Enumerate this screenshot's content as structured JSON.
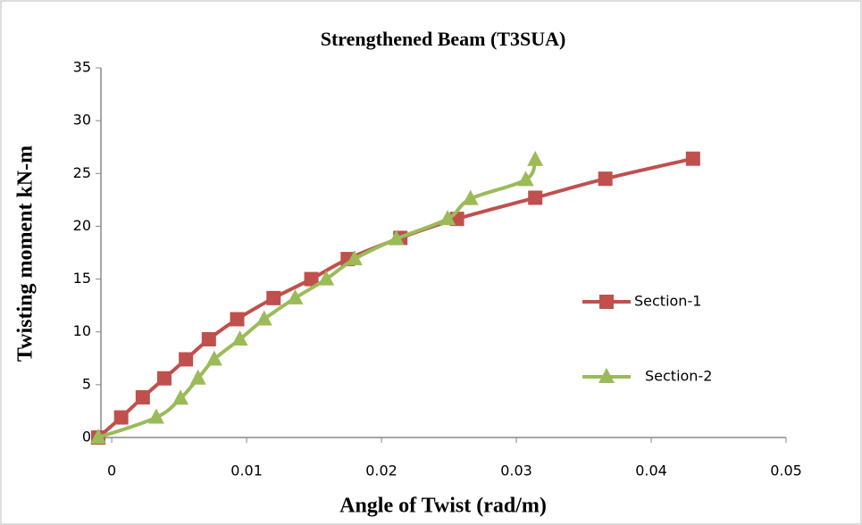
{
  "chart_data": {
    "type": "line",
    "title": "Strengthened Beam (T3SUA)",
    "xlabel": "Angle of Twist (rad/m)",
    "ylabel": "Twisting moment kN-m",
    "xlim": [
      -0.001,
      0.05
    ],
    "xticks": [
      0,
      0.01,
      0.02,
      0.03,
      0.04,
      0.05
    ],
    "ylim": [
      0,
      35
    ],
    "yticks": [
      0,
      5,
      10,
      15,
      20,
      25,
      30,
      35
    ],
    "grid": false,
    "legend": "right",
    "series": [
      {
        "name": "Section-1",
        "color": "#c0504d",
        "marker": "square",
        "x": [
          -0.001,
          0.0007,
          0.0023,
          0.0039,
          0.0055,
          0.0072,
          0.0093,
          0.012,
          0.0148,
          0.0175,
          0.0214,
          0.0256,
          0.0314,
          0.0366,
          0.0431
        ],
        "values": [
          0,
          1.9,
          3.8,
          5.6,
          7.4,
          9.3,
          11.2,
          13.2,
          15.0,
          16.9,
          18.9,
          20.7,
          22.7,
          24.5,
          26.4
        ]
      },
      {
        "name": "Section-2",
        "color": "#9bbb59",
        "marker": "triangle",
        "x": [
          -0.001,
          0.0033,
          0.0051,
          0.0064,
          0.0076,
          0.0095,
          0.0113,
          0.0136,
          0.0159,
          0.018,
          0.0211,
          0.0249,
          0.0266,
          0.0307,
          0.0314
        ],
        "values": [
          0,
          1.9,
          3.7,
          5.6,
          7.4,
          9.3,
          11.2,
          13.2,
          15.0,
          16.9,
          18.8,
          20.7,
          22.6,
          24.4,
          26.3
        ]
      }
    ]
  }
}
